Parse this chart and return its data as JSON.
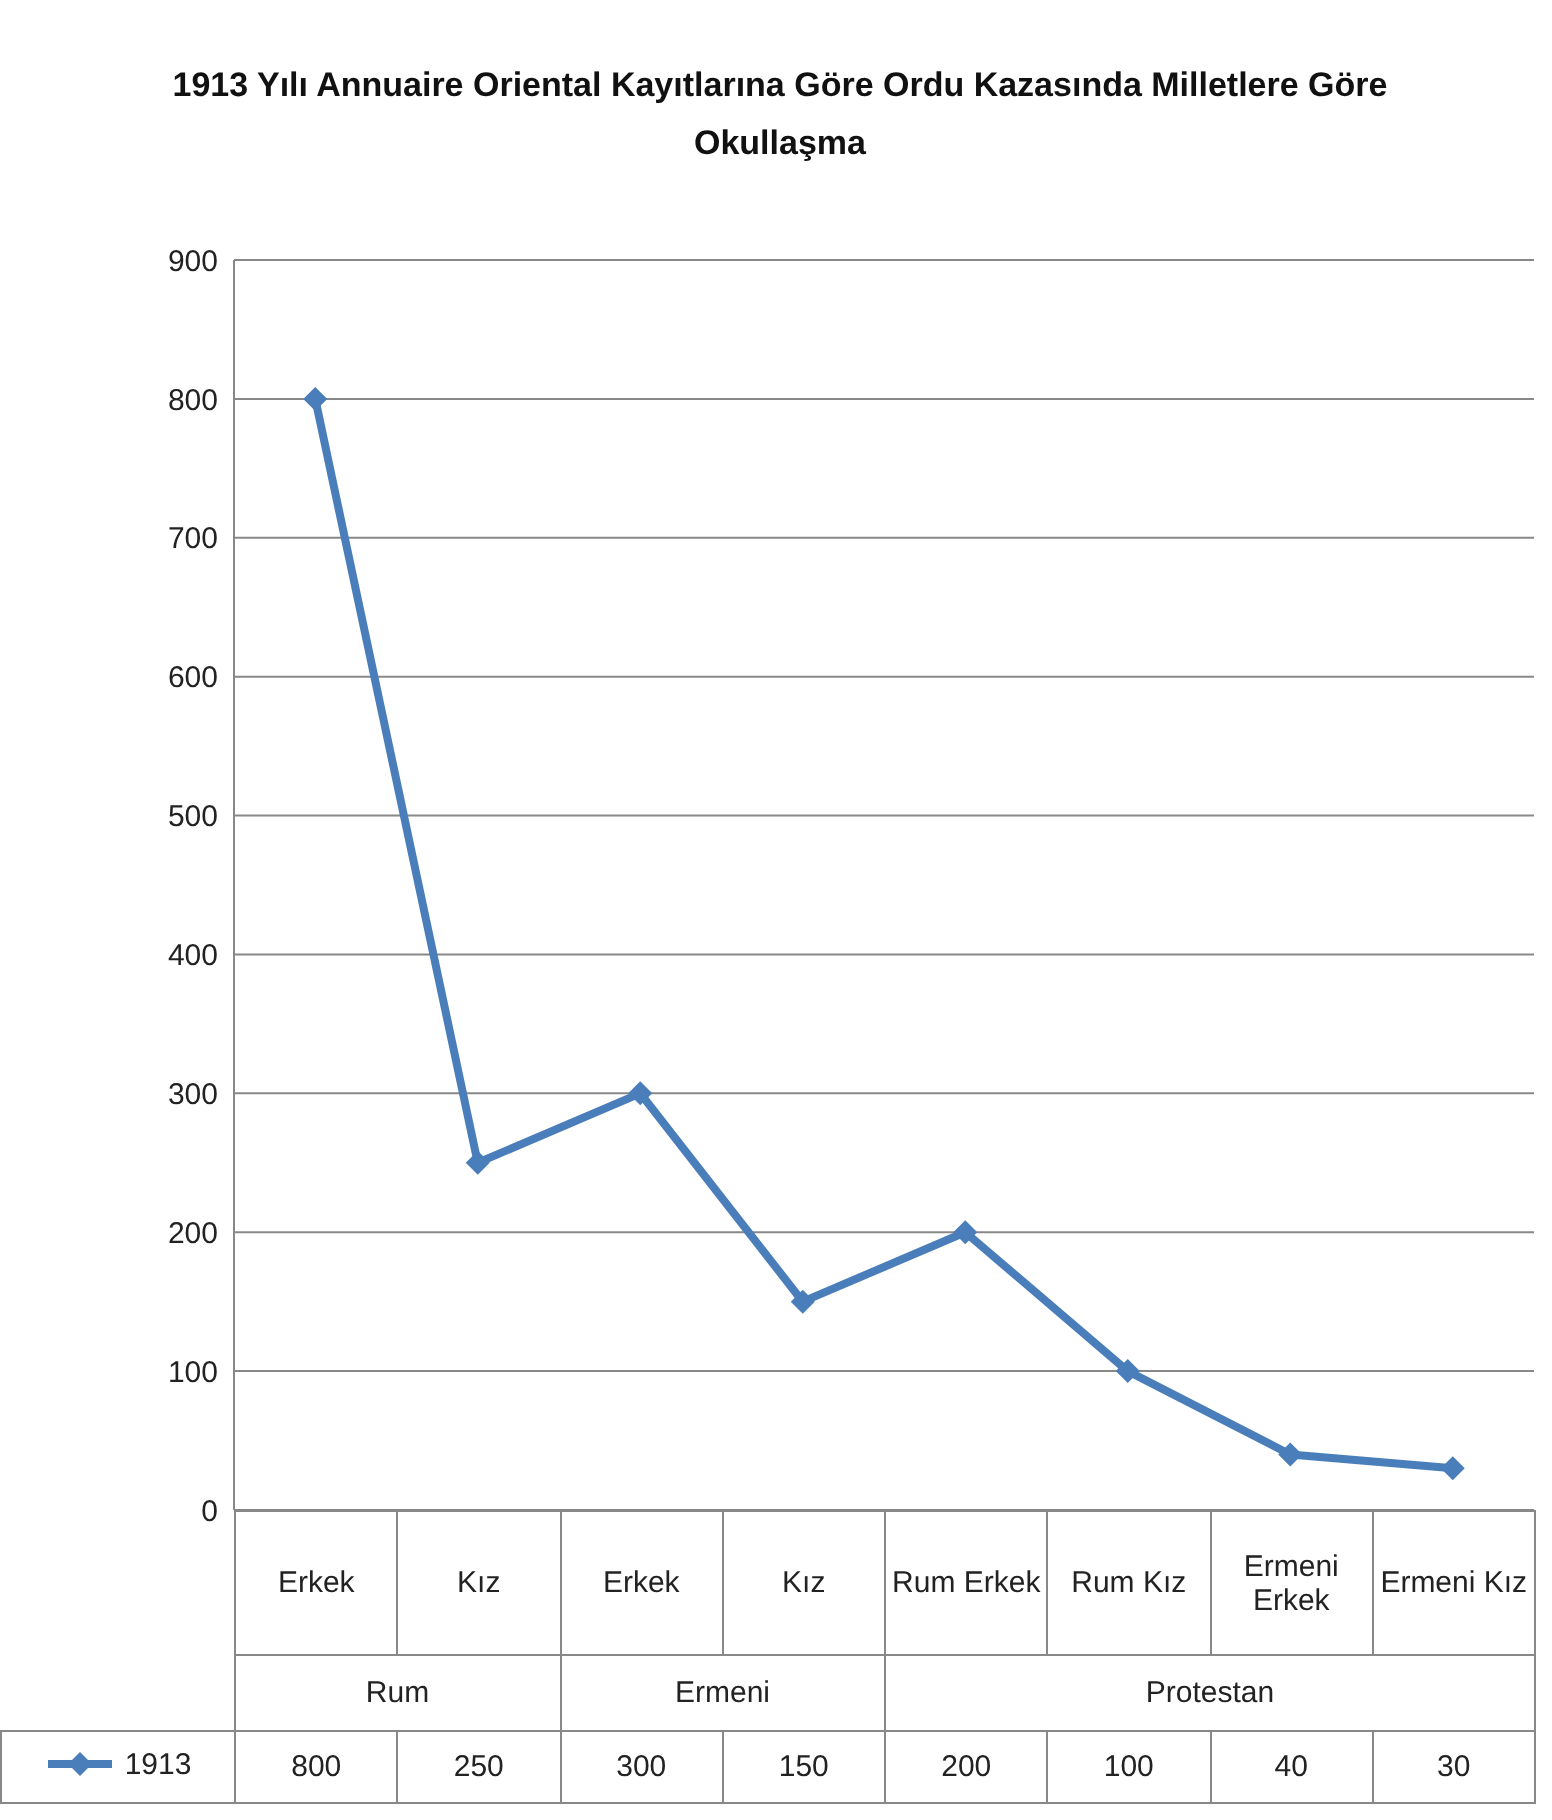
{
  "chart_data": {
    "type": "line",
    "title": "1913 Yılı Annuaire Oriental Kayıtlarına Göre Ordu Kazasında Milletlere Göre Okullaşma",
    "categories": [
      "Erkek",
      "Kız",
      "Erkek",
      "Kız",
      "Rum Erkek",
      "Rum Kız",
      "Ermeni Erkek",
      "Ermeni Kız"
    ],
    "annotations": [
      "Rum",
      "Ermeni",
      "Protestan"
    ],
    "series": [
      {
        "name": "1913",
        "color": "#4a7ebb",
        "values": [
          800,
          250,
          300,
          150,
          200,
          100,
          40,
          30
        ]
      }
    ],
    "ylim": [
      0,
      900
    ],
    "yticks": [
      0,
      100,
      200,
      300,
      400,
      500,
      600,
      700,
      800,
      900
    ],
    "grid": "y",
    "marker": "diamond",
    "line_style": "solid",
    "legend": "bottom",
    "data_labels": true
  }
}
